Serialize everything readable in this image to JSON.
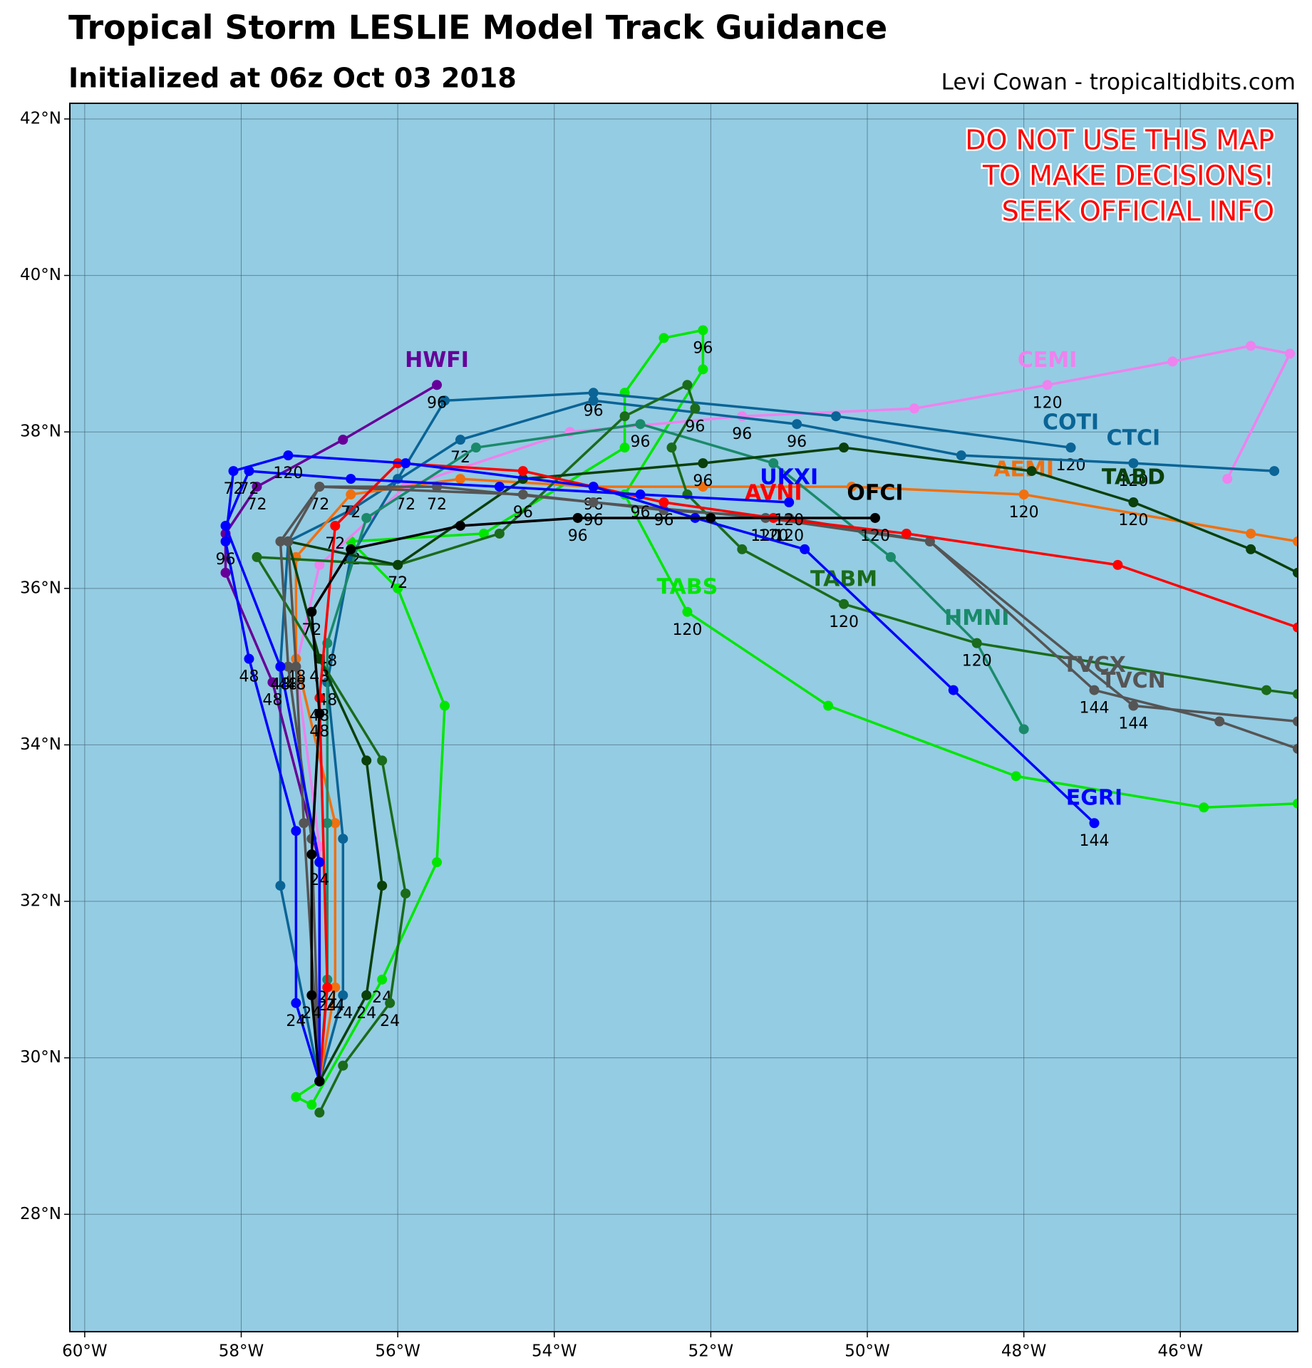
{
  "chart_data": {
    "type": "line",
    "title": "Tropical Storm LESLIE Model Track Guidance",
    "subtitle": "Initialized at 06z Oct 03 2018",
    "credit": "Levi Cowan - tropicaltidbits.com",
    "warning": [
      "DO NOT USE THIS MAP",
      "TO MAKE DECISIONS!",
      "SEEK OFFICIAL INFO"
    ],
    "background": "#94cce3",
    "grid": true,
    "xlim": [
      -60.19,
      -44.5
    ],
    "ylim": [
      26.5,
      42.2
    ],
    "xticks": [
      {
        "value": -60,
        "label": "60°W"
      },
      {
        "value": -58,
        "label": "58°W"
      },
      {
        "value": -56,
        "label": "56°W"
      },
      {
        "value": -54,
        "label": "54°W"
      },
      {
        "value": -52,
        "label": "52°W"
      },
      {
        "value": -50,
        "label": "50°W"
      },
      {
        "value": -48,
        "label": "48°W"
      },
      {
        "value": -46,
        "label": "46°W"
      }
    ],
    "yticks": [
      {
        "value": 28,
        "label": "28°N"
      },
      {
        "value": 30,
        "label": "30°N"
      },
      {
        "value": 32,
        "label": "32°N"
      },
      {
        "value": 34,
        "label": "34°N"
      },
      {
        "value": 36,
        "label": "36°N"
      },
      {
        "value": 38,
        "label": "38°N"
      },
      {
        "value": 40,
        "label": "40°N"
      },
      {
        "value": 42,
        "label": "42°N"
      }
    ],
    "series": [
      {
        "name": "TABS",
        "color": "#00e600",
        "x": [
          -57.0,
          -57.3,
          -57.1,
          -56.2,
          -55.5,
          -55.4,
          -56.0,
          -56.6,
          -54.9,
          -53.1,
          -53.1,
          -52.6,
          -52.1,
          -52.1,
          -53.1,
          -52.3,
          -50.5,
          -48.1,
          -45.7,
          -44.5
        ],
        "y": [
          29.7,
          29.5,
          29.4,
          31.0,
          32.5,
          34.5,
          36.0,
          36.6,
          36.7,
          37.8,
          38.5,
          39.2,
          39.3,
          38.8,
          37.2,
          35.7,
          34.5,
          33.6,
          33.2,
          33.25
        ],
        "hours": [
          null,
          null,
          null,
          24,
          null,
          null,
          null,
          72,
          null,
          null,
          null,
          null,
          96,
          null,
          null,
          120,
          null,
          null,
          null,
          null
        ]
      },
      {
        "name": "CEMI",
        "color": "#ee82ee",
        "x": [
          -57.0,
          -57.0,
          -57.3,
          -57.0,
          -55.9,
          -53.8,
          -51.6,
          -49.4,
          -47.7,
          -46.1,
          -45.1,
          -44.6,
          -45.4
        ],
        "y": [
          29.7,
          32.7,
          35.0,
          36.3,
          37.3,
          38.0,
          38.2,
          38.3,
          38.6,
          38.9,
          39.1,
          39.0,
          37.4
        ],
        "hours": [
          null,
          null,
          48,
          null,
          72,
          null,
          96,
          null,
          120,
          null,
          null,
          null,
          null
        ]
      },
      {
        "name": "COTI",
        "color": "#0a6496",
        "x": [
          -57.0,
          -56.7,
          -56.7,
          -56.9,
          -56.6,
          -56.0,
          -55.4,
          -53.5,
          -50.4,
          -47.4
        ],
        "y": [
          29.7,
          30.8,
          32.8,
          34.8,
          36.4,
          37.4,
          38.4,
          38.5,
          38.2,
          37.8
        ],
        "hours": [
          null,
          24,
          null,
          48,
          null,
          null,
          null,
          96,
          null,
          120
        ]
      },
      {
        "name": "CTCI",
        "color": "#0a6496",
        "x": [
          -57.0,
          -57.5,
          -57.5,
          -57.4,
          -56.6,
          -55.2,
          -53.5,
          -50.9,
          -48.8,
          -46.6,
          -44.8
        ],
        "y": [
          29.7,
          32.2,
          35.0,
          36.6,
          37.0,
          37.9,
          38.4,
          38.1,
          37.7,
          37.6,
          37.5
        ],
        "hours": [
          null,
          null,
          48,
          null,
          null,
          72,
          null,
          96,
          null,
          120,
          null
        ]
      },
      {
        "name": "HWFI",
        "color": "#660099",
        "x": [
          -57.0,
          -57.0,
          -57.6,
          -58.2,
          -58.2,
          -57.8,
          -56.7,
          -55.5
        ],
        "y": [
          29.7,
          32.5,
          34.8,
          36.2,
          36.7,
          37.3,
          37.9,
          38.6
        ],
        "hours": [
          null,
          null,
          48,
          null,
          null,
          72,
          null,
          96
        ]
      },
      {
        "name": "AEMI",
        "color": "#f07010",
        "x": [
          -57.0,
          -56.8,
          -56.8,
          -57.3,
          -57.3,
          -56.6,
          -55.2,
          -53.5,
          -52.1,
          -50.2,
          -48.0,
          -45.1,
          -44.5
        ],
        "y": [
          29.7,
          30.9,
          33.0,
          35.1,
          36.4,
          37.2,
          37.4,
          37.3,
          37.3,
          37.3,
          37.2,
          36.7,
          36.6
        ],
        "hours": [
          null,
          24,
          null,
          48,
          null,
          72,
          null,
          96,
          null,
          null,
          120,
          null,
          null
        ]
      },
      {
        "name": "HMNI",
        "color": "#1a8a6a",
        "x": [
          -57.0,
          -56.9,
          -56.9,
          -56.9,
          -56.4,
          -55.0,
          -52.9,
          -51.2,
          -49.7,
          -48.6,
          -48.0
        ],
        "y": [
          29.7,
          31.0,
          33.0,
          35.3,
          36.9,
          37.8,
          38.1,
          37.6,
          36.4,
          35.3,
          34.2
        ],
        "hours": [
          null,
          24,
          null,
          48,
          null,
          null,
          96,
          null,
          null,
          120,
          null
        ]
      },
      {
        "name": "TABM",
        "color": "#1a6b1a",
        "x": [
          -57.0,
          -56.7,
          -56.1,
          -55.9,
          -56.2,
          -57.0,
          -57.8,
          -56.0,
          -54.7,
          -53.1,
          -52.3,
          -52.2,
          -52.5,
          -52.3,
          -51.6,
          -50.3,
          -48.6,
          -44.9,
          -44.5
        ],
        "y": [
          29.3,
          29.9,
          30.7,
          32.1,
          33.8,
          35.1,
          36.4,
          36.3,
          36.7,
          38.2,
          38.6,
          38.3,
          37.8,
          37.2,
          36.5,
          35.8,
          35.3,
          34.7,
          34.65
        ],
        "hours": [
          null,
          null,
          24,
          null,
          null,
          48,
          null,
          72,
          null,
          null,
          null,
          96,
          null,
          null,
          null,
          120,
          null,
          null,
          null
        ]
      },
      {
        "name": "TABD",
        "color": "#0a400a",
        "x": [
          -57.0,
          -56.4,
          -56.2,
          -56.4,
          -57.0,
          -57.4,
          -56.0,
          -54.4,
          -52.1,
          -50.3,
          -47.9,
          -46.6,
          -45.1,
          -44.5
        ],
        "y": [
          29.7,
          30.8,
          32.2,
          33.8,
          35.1,
          36.6,
          36.3,
          37.4,
          37.6,
          37.8,
          37.5,
          37.1,
          36.5,
          36.2
        ],
        "hours": [
          null,
          24,
          null,
          null,
          48,
          null,
          72,
          null,
          96,
          null,
          null,
          120,
          null,
          null
        ]
      },
      {
        "name": "TVCX",
        "color": "#555555",
        "x": [
          -57.0,
          -57.1,
          -57.4,
          -57.5,
          -57.0,
          -54.4,
          -52.6,
          -51.0,
          -49.2,
          -47.1,
          -45.5,
          -44.5
        ],
        "y": [
          29.7,
          32.8,
          35.0,
          36.6,
          37.3,
          37.2,
          37.0,
          36.9,
          36.6,
          34.7,
          34.3,
          33.95
        ],
        "hours": [
          null,
          null,
          48,
          null,
          72,
          96,
          null,
          120,
          null,
          144,
          null,
          null
        ]
      },
      {
        "name": "TVCN",
        "color": "#555555",
        "x": [
          -57.0,
          -57.2,
          -57.3,
          -57.4,
          -57.0,
          -55.5,
          -53.5,
          -51.3,
          -49.2,
          -46.6,
          -44.5
        ],
        "y": [
          29.7,
          33.0,
          35.0,
          36.6,
          37.3,
          37.3,
          37.1,
          36.9,
          36.6,
          34.5,
          34.3
        ],
        "hours": [
          null,
          null,
          48,
          null,
          null,
          72,
          96,
          120,
          null,
          144,
          null
        ]
      },
      {
        "name": "AVNI",
        "color": "#ff0000",
        "x": [
          -57.0,
          -56.9,
          -57.0,
          -56.8,
          -56.0,
          -54.4,
          -52.6,
          -51.2,
          -49.5,
          -46.8,
          -44.5
        ],
        "y": [
          29.7,
          30.9,
          34.6,
          36.8,
          37.6,
          37.5,
          37.1,
          36.9,
          36.7,
          36.3,
          35.5
        ],
        "hours": [
          null,
          24,
          48,
          72,
          null,
          null,
          96,
          120,
          null,
          null,
          null
        ]
      },
      {
        "name": "UKXI",
        "color": "#0000ff",
        "x": [
          -57.0,
          -57.0,
          -57.5,
          -58.2,
          -57.9,
          -56.6,
          -54.7,
          -52.9,
          -51.0
        ],
        "y": [
          29.7,
          32.5,
          35.0,
          36.8,
          37.5,
          37.4,
          37.3,
          37.2,
          37.1
        ],
        "hours": [
          null,
          24,
          48,
          null,
          72,
          null,
          null,
          96,
          120
        ]
      },
      {
        "name": "EGRI",
        "color": "#0000ff",
        "x": [
          -57.0,
          -57.3,
          -57.3,
          -57.9,
          -58.2,
          -58.1,
          -57.4,
          -55.9,
          -53.5,
          -52.2,
          -50.8,
          -48.9,
          -47.1
        ],
        "y": [
          29.7,
          30.7,
          32.9,
          35.1,
          36.6,
          37.5,
          37.7,
          37.6,
          37.3,
          36.9,
          36.5,
          34.7,
          33.0
        ],
        "hours": [
          null,
          24,
          null,
          48,
          96,
          72,
          120,
          null,
          null,
          null,
          null,
          null,
          144
        ]
      },
      {
        "name": "OFCI",
        "color": "#000000",
        "x": [
          -57.0,
          -57.1,
          -57.1,
          -57.0,
          -57.1,
          -56.6,
          -55.2,
          -53.7,
          -52.0,
          -49.9
        ],
        "y": [
          29.7,
          30.8,
          32.6,
          34.4,
          35.7,
          36.5,
          36.8,
          36.9,
          36.9,
          36.9
        ],
        "hours": [
          null,
          24,
          null,
          48,
          72,
          null,
          null,
          96,
          null,
          120
        ]
      }
    ]
  }
}
